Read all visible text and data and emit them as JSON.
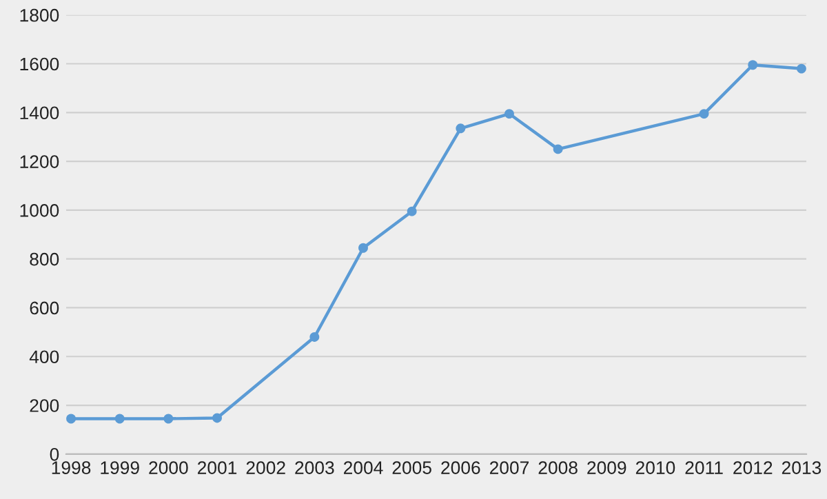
{
  "chart_data": {
    "type": "line",
    "x": [
      1998,
      1999,
      2000,
      2001,
      2003,
      2004,
      2005,
      2006,
      2007,
      2008,
      2011,
      2012,
      2013
    ],
    "series": [
      {
        "color": "#5b9bd5",
        "values": [
          145,
          145,
          145,
          148,
          480,
          845,
          995,
          1335,
          1395,
          1250,
          1395,
          1595,
          1580
        ]
      }
    ],
    "xlim": [
      1997.9,
      2013.1
    ],
    "xticks": [
      1998,
      1999,
      2000,
      2001,
      2002,
      2003,
      2004,
      2005,
      2006,
      2007,
      2008,
      2009,
      2010,
      2011,
      2012,
      2013
    ],
    "ylim": [
      0,
      1800
    ],
    "yticks": [
      0,
      200,
      400,
      600,
      800,
      1000,
      1200,
      1400,
      1600,
      1800
    ],
    "grid": "y",
    "marker": "circle",
    "line_style": "solid"
  }
}
